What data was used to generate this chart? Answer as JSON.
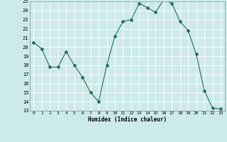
{
  "x": [
    0,
    1,
    2,
    3,
    4,
    5,
    6,
    7,
    8,
    9,
    10,
    11,
    12,
    13,
    14,
    15,
    16,
    17,
    18,
    19,
    20,
    21,
    22,
    23
  ],
  "y": [
    20.5,
    19.8,
    17.8,
    17.8,
    19.5,
    18.0,
    16.7,
    15.0,
    14.0,
    18.0,
    21.2,
    22.8,
    23.0,
    24.8,
    24.3,
    23.8,
    25.2,
    24.8,
    22.8,
    21.8,
    19.2,
    15.2,
    13.3,
    13.2
  ],
  "line_color": "#2a6b5e",
  "marker": "D",
  "marker_size": 2.0,
  "bg_color": "#cceaea",
  "grid_color": "#ffffff",
  "xlabel": "Humidex (Indice chaleur)",
  "ylim": [
    13,
    25
  ],
  "xlim": [
    -0.5,
    23.5
  ],
  "yticks": [
    13,
    14,
    15,
    16,
    17,
    18,
    19,
    20,
    21,
    22,
    23,
    24,
    25
  ],
  "xticks": [
    0,
    1,
    2,
    3,
    4,
    5,
    6,
    7,
    8,
    9,
    10,
    11,
    12,
    13,
    14,
    15,
    16,
    17,
    18,
    19,
    20,
    21,
    22,
    23
  ]
}
